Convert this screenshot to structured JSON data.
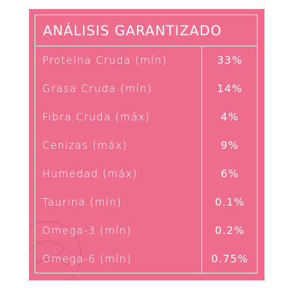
{
  "table": {
    "title": "ANÁLISIS GARANTIZADO",
    "rows": [
      {
        "label": "Proteína Cruda (mín)",
        "value": "33%"
      },
      {
        "label": "Grasa Cruda (mín)",
        "value": "14%"
      },
      {
        "label": "Fibra Cruda (máx)",
        "value": "4%"
      },
      {
        "label": "Cenizas (máx)",
        "value": "9%"
      },
      {
        "label": "Humedad (máx)",
        "value": "6%"
      },
      {
        "label": "Taurina (mín)",
        "value": "0.1%"
      },
      {
        "label": "Omega-3 (mín)",
        "value": "0.2%"
      },
      {
        "label": "Omega-6 (mín)",
        "value": "0.75%"
      }
    ]
  },
  "colors": {
    "panel": "#ee6c8c",
    "text": "#ffffff"
  }
}
